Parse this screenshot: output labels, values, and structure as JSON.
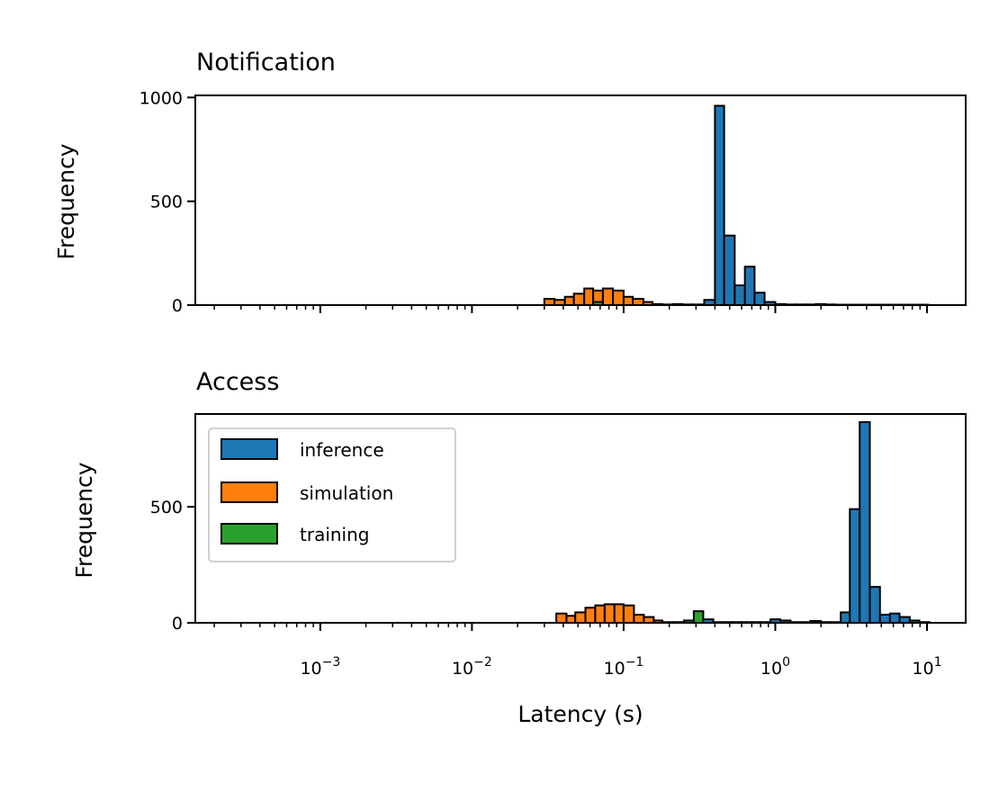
{
  "chart_data": {
    "type": "bar",
    "xscale": "log",
    "xlim": [
      0.00015,
      18
    ],
    "xlabel": "Latency (s)",
    "xticks": [
      "10-3",
      "10-2",
      "10-1",
      "100",
      "101"
    ],
    "xtick_labels": [
      {
        "base": "10",
        "exp": "−3"
      },
      {
        "base": "10",
        "exp": "−2"
      },
      {
        "base": "10",
        "exp": "−1"
      },
      {
        "base": "10",
        "exp": "0"
      },
      {
        "base": "10",
        "exp": "1"
      }
    ],
    "legend": {
      "placement": "upper-left",
      "subplot": 1,
      "entries": [
        {
          "name": "inference",
          "color": "#1f77b4"
        },
        {
          "name": "simulation",
          "color": "#ff7f0e"
        },
        {
          "name": "training",
          "color": "#2ca02c"
        }
      ]
    },
    "subplots": [
      {
        "title": "Notification",
        "ylabel": "Frequency",
        "ylim": [
          0,
          1010
        ],
        "yticks": [
          "0",
          "500",
          "1000"
        ],
        "series": [
          {
            "name": "simulation",
            "color": "#ff7f0e",
            "bins": [
              [
                0.03,
                0.035,
                30
              ],
              [
                0.035,
                0.041,
                25
              ],
              [
                0.041,
                0.047,
                40
              ],
              [
                0.047,
                0.055,
                55
              ],
              [
                0.055,
                0.063,
                80
              ],
              [
                0.063,
                0.073,
                70
              ],
              [
                0.073,
                0.085,
                80
              ],
              [
                0.085,
                0.1,
                70
              ],
              [
                0.1,
                0.115,
                40
              ],
              [
                0.115,
                0.135,
                30
              ],
              [
                0.135,
                0.155,
                15
              ]
            ]
          },
          {
            "name": "training",
            "color": "#2ca02c",
            "bins": [
              [
                0.063,
                0.073,
                15
              ]
            ]
          },
          {
            "name": "inference",
            "color": "#1f77b4",
            "bins": [
              [
                0.155,
                0.18,
                5
              ],
              [
                0.18,
                0.21,
                3
              ],
              [
                0.21,
                0.245,
                5
              ],
              [
                0.245,
                0.285,
                3
              ],
              [
                0.285,
                0.34,
                3
              ],
              [
                0.34,
                0.4,
                25
              ],
              [
                0.4,
                0.46,
                960
              ],
              [
                0.46,
                0.54,
                335
              ],
              [
                0.54,
                0.63,
                95
              ],
              [
                0.63,
                0.73,
                185
              ],
              [
                0.73,
                0.85,
                60
              ],
              [
                0.85,
                1.0,
                15
              ],
              [
                1.0,
                1.17,
                5
              ],
              [
                1.17,
                1.37,
                3
              ],
              [
                1.37,
                1.6,
                3
              ],
              [
                1.6,
                1.85,
                3
              ],
              [
                1.85,
                2.15,
                5
              ],
              [
                2.15,
                2.5,
                3
              ],
              [
                2.5,
                2.95,
                2
              ],
              [
                2.95,
                3.45,
                2
              ],
              [
                3.45,
                4.0,
                2
              ],
              [
                4.0,
                4.7,
                2
              ],
              [
                4.7,
                5.5,
                2
              ],
              [
                5.5,
                6.4,
                2
              ],
              [
                6.4,
                7.5,
                2
              ],
              [
                7.5,
                8.7,
                2
              ],
              [
                8.7,
                10.2,
                2
              ]
            ]
          }
        ]
      },
      {
        "title": "Access",
        "ylabel": "Frequency",
        "ylim": [
          0,
          900
        ],
        "yticks": [
          "0",
          "500"
        ],
        "series": [
          {
            "name": "simulation",
            "color": "#ff7f0e",
            "bins": [
              [
                0.036,
                0.042,
                40
              ],
              [
                0.042,
                0.048,
                30
              ],
              [
                0.048,
                0.056,
                45
              ],
              [
                0.056,
                0.065,
                65
              ],
              [
                0.065,
                0.075,
                75
              ],
              [
                0.075,
                0.087,
                80
              ],
              [
                0.087,
                0.1,
                80
              ],
              [
                0.1,
                0.117,
                75
              ],
              [
                0.117,
                0.136,
                35
              ],
              [
                0.136,
                0.158,
                25
              ],
              [
                0.158,
                0.18,
                10
              ]
            ]
          },
          {
            "name": "training",
            "color": "#2ca02c",
            "bins": [
              [
                0.29,
                0.335,
                50
              ]
            ]
          },
          {
            "name": "inference",
            "color": "#1f77b4",
            "bins": [
              [
                0.18,
                0.215,
                3
              ],
              [
                0.215,
                0.25,
                3
              ],
              [
                0.25,
                0.29,
                10
              ],
              [
                0.335,
                0.39,
                15
              ],
              [
                0.39,
                0.45,
                3
              ],
              [
                0.45,
                0.52,
                3
              ],
              [
                0.52,
                0.6,
                3
              ],
              [
                0.6,
                0.7,
                3
              ],
              [
                0.7,
                0.8,
                3
              ],
              [
                0.8,
                0.93,
                3
              ],
              [
                0.93,
                1.08,
                15
              ],
              [
                1.08,
                1.26,
                10
              ],
              [
                1.26,
                1.46,
                3
              ],
              [
                1.46,
                1.7,
                3
              ],
              [
                1.7,
                2.0,
                8
              ],
              [
                2.0,
                2.3,
                3
              ],
              [
                2.3,
                2.7,
                3
              ],
              [
                2.7,
                3.1,
                45
              ],
              [
                3.1,
                3.6,
                490
              ],
              [
                3.6,
                4.2,
                865
              ],
              [
                4.2,
                4.9,
                155
              ],
              [
                4.9,
                5.7,
                35
              ],
              [
                5.7,
                6.6,
                40
              ],
              [
                6.6,
                7.7,
                25
              ],
              [
                7.7,
                8.9,
                10
              ],
              [
                8.9,
                10.4,
                3
              ]
            ]
          }
        ]
      }
    ]
  }
}
